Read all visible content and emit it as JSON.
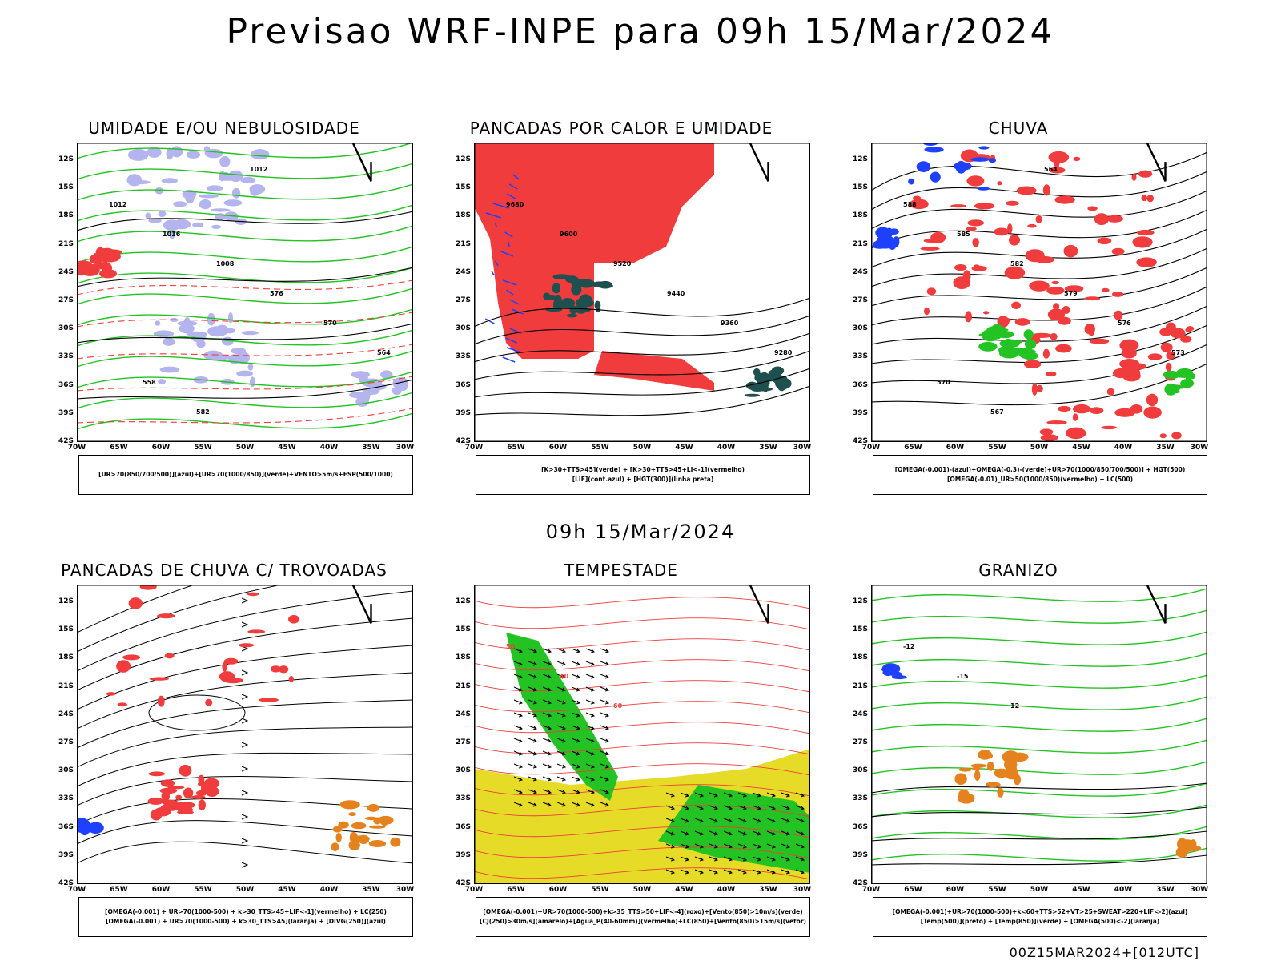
{
  "title": "Previsao WRF-INPE  para 09h 15/Mar/2024",
  "subtitle": "09h 15/Mar/2024",
  "footer": "00Z15MAR2024+[012UTC]",
  "colors": {
    "red": "#f03c3c",
    "green": "#22c322",
    "blue": "#1e40ff",
    "lavender": "#b4b4ee",
    "darkteal": "#1f5050",
    "yellow": "#e6dc28",
    "orange": "#e6821e",
    "black": "#000000"
  },
  "axes": {
    "lat_labels": [
      "12S",
      "15S",
      "18S",
      "21S",
      "24S",
      "27S",
      "30S",
      "33S",
      "36S",
      "39S",
      "42S"
    ],
    "lon_labels": [
      "70W",
      "65W",
      "60W",
      "55W",
      "50W",
      "45W",
      "40W",
      "35W",
      "30W"
    ]
  },
  "chart_data": [
    {
      "type": "map",
      "title": "UMIDADE E/OU NEBULOSIDADE",
      "legend": [
        "[UR>70(850/700/500)](azul)+[UR>70(1000/850)](verde)+VENTO>5m/s+ESP(500/1000)"
      ],
      "contour_labels": [
        "1012",
        "1016",
        "1008",
        "576",
        "570",
        "564",
        "558",
        "582",
        "1012"
      ]
    },
    {
      "type": "map",
      "title": "PANCADAS POR CALOR E UMIDADE",
      "legend": [
        "[K>30+TTS>45](verde) + [K>30+TTS>45+LI<-1](vermelho)",
        "[LIF](cont.azul) + [HGT(300)](linha preta)"
      ],
      "contour_labels": [
        "9680",
        "9600",
        "9520",
        "9440",
        "9360",
        "9280"
      ]
    },
    {
      "type": "map",
      "title": "CHUVA",
      "legend": [
        "[OMEGA(-0.001)-(azul)+OMEGA(-0.3)-(verde)+UR>70(1000/850/700/500)] + HGT(500)",
        "[OMEGA(-0.01)_UR>50(1000/850)(vermelho) + LC(500)"
      ],
      "contour_labels": [
        "588",
        "585",
        "582",
        "579",
        "576",
        "573",
        "570",
        "567",
        "564"
      ]
    },
    {
      "type": "map",
      "title": "PANCADAS DE CHUVA C/ TROVOADAS",
      "legend": [
        "[OMEGA(-0.001) + UR>70(1000-500) + k>30_TTS>45+LIF<-1](vermelho) + LC(250)",
        "[OMEGA(-0.001) + UR>70(1000-500) + k>30_TTS>45](laranja) + [DIVG(250)](azul)"
      ],
      "contour_labels": []
    },
    {
      "type": "map",
      "title": "TEMPESTADE",
      "legend": [
        "[OMEGA(-0.001)+UR>70(1000-500)+k>35_TTS>50+LIF<-4](roxo)+[Vento(850)>10m/s](verde)",
        "[CJ(250)>30m/s](amarelo)+[Agua_P(40-60mm)](vermelho)+LC(850)+[Vento(850)>15m/s](vetor)"
      ],
      "contour_labels": [
        "50",
        "40",
        "60"
      ]
    },
    {
      "type": "map",
      "title": "GRANIZO",
      "legend": [
        "[OMEGA(-0.001)+UR>70(1000-500)+k<60+TTS>52+VT>25+SWEAT>220+LIF<-2](azul)",
        "[Temp(500)](preto) + [Temp(850)](verde) + [OMEGA(500)<-2](laranja)"
      ],
      "contour_labels": [
        "-12",
        "-15",
        "12"
      ]
    }
  ]
}
